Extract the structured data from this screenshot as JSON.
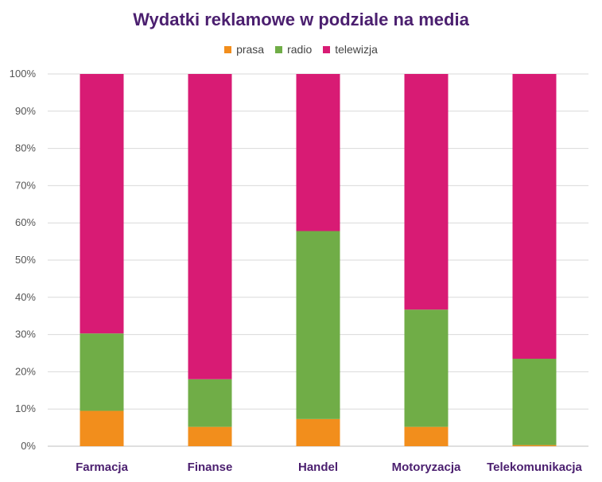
{
  "chart_data": {
    "type": "bar",
    "stacked": true,
    "percent_stacked": true,
    "title": "Wydatki reklamowe w podziale na media",
    "xlabel": "",
    "ylabel": "",
    "categories": [
      "Farmacja",
      "Finanse",
      "Handel",
      "Motoryzacja",
      "Telekomunikacja"
    ],
    "series": [
      {
        "name": "prasa",
        "color": "#f28e1c",
        "values": [
          9.5,
          5.2,
          7.3,
          5.2,
          0.3
        ]
      },
      {
        "name": "radio",
        "color": "#70ad47",
        "values": [
          20.8,
          12.8,
          50.5,
          31.5,
          23.2
        ]
      },
      {
        "name": "telewizja",
        "color": "#d81b74",
        "values": [
          69.7,
          82.0,
          42.2,
          63.3,
          76.5
        ]
      }
    ],
    "ylim": [
      0,
      100
    ],
    "yticks": [
      "0%",
      "10%",
      "20%",
      "30%",
      "40%",
      "50%",
      "60%",
      "70%",
      "80%",
      "90%",
      "100%"
    ],
    "grid": true,
    "legend_position": "top"
  }
}
